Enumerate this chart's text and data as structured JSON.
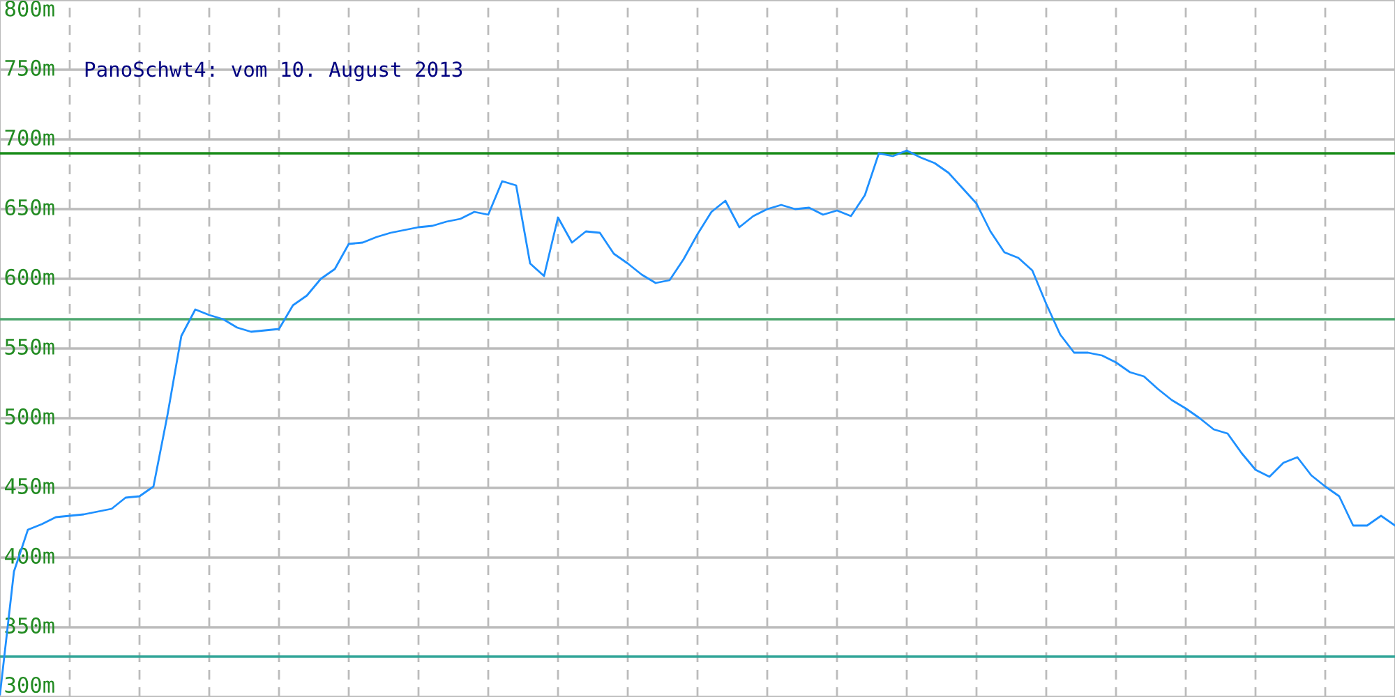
{
  "chart_data": {
    "type": "line",
    "title": "PanoSchwt4: vom 10. August 2013",
    "categories": [
      null,
      null,
      null,
      null,
      null,
      null,
      null,
      null,
      null,
      null,
      null,
      null,
      null,
      null,
      null,
      null,
      null,
      null,
      null,
      null,
      null,
      null,
      null,
      null,
      null,
      null,
      null,
      null,
      null,
      null,
      null,
      null,
      null,
      null,
      null,
      null,
      null,
      null,
      null,
      null,
      null,
      null,
      null,
      null,
      null,
      null,
      null,
      null,
      null,
      null,
      null,
      null,
      null,
      null,
      null,
      null,
      null,
      null,
      null,
      null,
      null,
      null,
      null,
      null,
      null,
      null,
      null,
      null,
      null,
      null,
      null,
      null,
      null,
      null,
      null,
      null,
      null,
      null,
      null,
      null,
      null,
      null,
      null,
      null,
      null,
      null,
      null,
      null,
      null,
      null,
      null,
      null,
      null,
      null,
      null,
      null,
      null,
      null,
      null,
      null,
      null
    ],
    "series": [
      {
        "color": "#1e90ff",
        "values": [
          302,
          390,
          420,
          424,
          429,
          430,
          431,
          433,
          435,
          443,
          444,
          451,
          502,
          559,
          578,
          574,
          571,
          565,
          562,
          563,
          564,
          581,
          588,
          600,
          607,
          625,
          626,
          630,
          633,
          635,
          637,
          638,
          641,
          643,
          648,
          646,
          670,
          667,
          611,
          602,
          644,
          626,
          634,
          633,
          618,
          611,
          603,
          597,
          599,
          614,
          632,
          648,
          656,
          637,
          645,
          650,
          653,
          650,
          651,
          646,
          649,
          645,
          660,
          690,
          688,
          692,
          687,
          683,
          676,
          665,
          654,
          634,
          619,
          615,
          606,
          582,
          560,
          547,
          547,
          545,
          540,
          533,
          530,
          521,
          513,
          507,
          500,
          492,
          489,
          475,
          463,
          458,
          468,
          472,
          459,
          451,
          444,
          423,
          423,
          430,
          423
        ]
      }
    ],
    "ylim": [
      300,
      800
    ],
    "yticks": [
      {
        "value": 300,
        "label": "300m"
      },
      {
        "value": 350,
        "label": "350m"
      },
      {
        "value": 400,
        "label": "400m"
      },
      {
        "value": 450,
        "label": "450m"
      },
      {
        "value": 500,
        "label": "500m"
      },
      {
        "value": 550,
        "label": "550m"
      },
      {
        "value": 600,
        "label": "600m"
      },
      {
        "value": 650,
        "label": "650m"
      },
      {
        "value": 700,
        "label": "700m"
      },
      {
        "value": 750,
        "label": "750m"
      },
      {
        "value": 800,
        "label": "800m"
      }
    ],
    "ref_lines": [
      {
        "axis": "y",
        "value": 690,
        "color": "#1a8c1a"
      },
      {
        "axis": "y",
        "value": 571,
        "color": "#4ca66e"
      },
      {
        "axis": "y",
        "value": 329,
        "color": "#33a699"
      }
    ],
    "grid": true,
    "marker": "none",
    "line_style": "solid"
  }
}
